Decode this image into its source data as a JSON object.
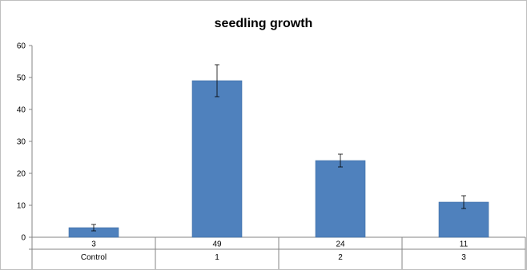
{
  "chart_data": {
    "type": "bar",
    "title": "seedling growth",
    "xlabel": "",
    "ylabel": "",
    "categories": [
      "Control",
      "1",
      "2",
      "3"
    ],
    "values": [
      3,
      49,
      24,
      11
    ],
    "errors": [
      1,
      5,
      2,
      2
    ],
    "data_table_values": [
      "3",
      "49",
      "24",
      "11"
    ],
    "ylim": [
      0,
      60
    ],
    "yticks": [
      "0",
      "10",
      "20",
      "30",
      "40",
      "50",
      "60"
    ],
    "grid": false,
    "legend": "none",
    "bar_color": "#4f81bd"
  }
}
